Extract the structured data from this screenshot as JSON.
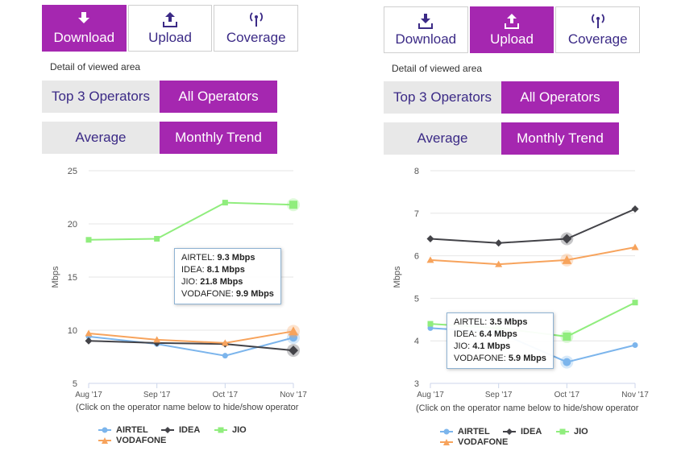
{
  "tabs": {
    "download": "Download",
    "upload": "Upload",
    "coverage": "Coverage"
  },
  "detail_label": "Detail of viewed area",
  "segment": {
    "top3": "Top 3 Operators",
    "all": "All Operators",
    "average": "Average",
    "monthly": "Monthly Trend"
  },
  "hint": "(Click on the operator name below to hide/show operator",
  "legend": {
    "airtel": "AIRTEL",
    "idea": "IDEA",
    "jio": "JIO",
    "vodafone": "VODAFONE"
  },
  "colors": {
    "accent": "#a527b0",
    "airtel": "#7cb5ec",
    "idea": "#434348",
    "jio": "#90ed7d",
    "vodafone": "#f7a35c"
  },
  "chart_data": [
    {
      "type": "line",
      "active_tab": "Download",
      "categories": [
        "Aug '17",
        "Sep '17",
        "Oct '17",
        "Nov '17"
      ],
      "ylabel": "Mbps",
      "ylim": [
        5,
        25
      ],
      "yticks": [
        5,
        10,
        15,
        20,
        25
      ],
      "grid": true,
      "series": [
        {
          "name": "AIRTEL",
          "values": [
            9.4,
            8.7,
            7.6,
            9.3
          ]
        },
        {
          "name": "IDEA",
          "values": [
            9.0,
            8.8,
            8.7,
            8.1
          ]
        },
        {
          "name": "JIO",
          "values": [
            18.5,
            18.6,
            22.0,
            21.8
          ]
        },
        {
          "name": "VODAFONE",
          "values": [
            9.7,
            9.1,
            8.8,
            9.9
          ]
        }
      ],
      "tooltip": {
        "airtel": "9.3 Mbps",
        "idea": "8.1 Mbps",
        "jio": "21.8 Mbps",
        "vodafone": "9.9 Mbps"
      }
    },
    {
      "type": "line",
      "active_tab": "Upload",
      "categories": [
        "Aug '17",
        "Sep '17",
        "Oct '17",
        "Nov '17"
      ],
      "ylabel": "Mbps",
      "ylim": [
        3,
        8
      ],
      "yticks": [
        3,
        4,
        5,
        6,
        7,
        8
      ],
      "grid": true,
      "series": [
        {
          "name": "AIRTEL",
          "values": [
            4.3,
            4.2,
            3.5,
            3.9
          ]
        },
        {
          "name": "IDEA",
          "values": [
            6.4,
            6.3,
            6.4,
            7.1
          ]
        },
        {
          "name": "JIO",
          "values": [
            4.4,
            4.3,
            4.1,
            4.9
          ]
        },
        {
          "name": "VODAFONE",
          "values": [
            5.9,
            5.8,
            5.9,
            6.2
          ]
        }
      ],
      "tooltip": {
        "airtel": "3.5 Mbps",
        "idea": "6.4 Mbps",
        "jio": "4.1 Mbps",
        "vodafone": "5.9 Mbps"
      }
    }
  ]
}
